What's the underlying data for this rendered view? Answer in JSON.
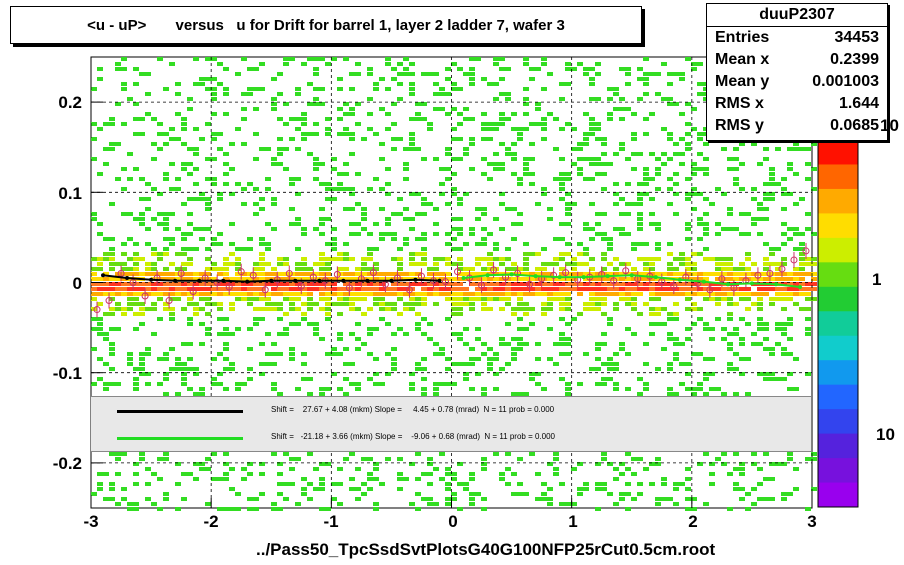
{
  "title": "<u - uP>       versus   u for Drift for barrel 1, layer 2 ladder 7, wafer 3",
  "stats": {
    "name": "duuP2307",
    "rows": [
      {
        "label": "Entries",
        "value": "34453"
      },
      {
        "label": "Mean x",
        "value": "0.2399"
      },
      {
        "label": "Mean y",
        "value": "0.001003"
      },
      {
        "label": "RMS x",
        "value": "1.644"
      },
      {
        "label": "RMS y",
        "value": "0.0685"
      }
    ]
  },
  "fit": {
    "black": {
      "text": "Shift =    27.67 + 4.08 (mkm) Slope =     4.45 + 0.78 (mrad)  N = 11 prob = 0.000",
      "color": "#000000"
    },
    "green": {
      "text": "Shift =   -21.18 + 3.66 (mkm) Slope =    -9.06 + 0.68 (mrad)  N = 11 prob = 0.000",
      "color": "#22dd22"
    }
  },
  "xlabel": "../Pass50_TpcSsdSvtPlotsG40G100NFP25rCut0.5cm.root",
  "x_ticks": [
    "-3",
    "-2",
    "-1",
    "0",
    "1",
    "2",
    "3"
  ],
  "y_ticks": [
    "0.2",
    "0.1",
    "0",
    "-0.1",
    "-0.2"
  ],
  "z_ticks": [
    "10",
    "1",
    "10"
  ],
  "chart_data": {
    "type": "heatmap",
    "title": "<u - uP>       versus   u for Drift for barrel 1, layer 2 ladder 7, wafer 3",
    "xlabel": "../Pass50_TpcSsdSvtPlotsG40G100NFP25rCut0.5cm.root",
    "ylabel": "",
    "xlim": [
      -3,
      3
    ],
    "ylim": [
      -0.25,
      0.25
    ],
    "x_ticks": [
      -3,
      -2,
      -1,
      0,
      1,
      2,
      3
    ],
    "y_ticks": [
      -0.2,
      -0.1,
      0,
      0.1,
      0.2
    ],
    "z_scale": "log",
    "grid": true,
    "series": [
      {
        "name": "black",
        "x": [
          -2.9,
          -2.7,
          -2.5,
          -2.3,
          -2.1,
          -1.9,
          -1.7,
          -1.5,
          -1.3,
          -1.1,
          -0.9,
          -0.7,
          -0.5,
          -0.3,
          -0.1
        ],
        "y": [
          0.008,
          0.005,
          0.003,
          0.002,
          0.002,
          0.002,
          0.001,
          0.002,
          0.002,
          0.002,
          0.002,
          0.002,
          0.002,
          0.003,
          0.002
        ]
      },
      {
        "name": "green",
        "x": [
          0.1,
          0.3,
          0.5,
          0.7,
          0.9,
          1.1,
          1.3,
          1.5,
          1.7,
          1.9,
          2.1,
          2.3,
          2.5,
          2.7,
          2.9
        ],
        "y": [
          0.005,
          0.008,
          0.009,
          0.007,
          0.006,
          0.006,
          0.007,
          0.008,
          0.006,
          0.003,
          0.001,
          -0.002,
          -0.001,
          -0.002,
          -0.005
        ]
      },
      {
        "name": "points",
        "x": [
          -2.95,
          -2.85,
          -2.75,
          -2.65,
          -2.55,
          -2.45,
          -2.35,
          -2.25,
          -2.15,
          -2.05,
          -1.95,
          -1.85,
          -1.75,
          -1.65,
          -1.55,
          -1.45,
          -1.35,
          -1.25,
          -1.15,
          -1.05,
          -0.95,
          -0.85,
          -0.75,
          -0.65,
          -0.55,
          -0.45,
          -0.35,
          -0.25,
          -0.15,
          -0.05,
          0.05,
          0.15,
          0.25,
          0.35,
          0.45,
          0.55,
          0.65,
          0.75,
          0.85,
          0.95,
          1.05,
          1.15,
          1.25,
          1.35,
          1.45,
          1.55,
          1.65,
          1.75,
          1.85,
          1.95,
          2.05,
          2.15,
          2.25,
          2.35,
          2.45,
          2.55,
          2.65,
          2.75,
          2.85,
          2.95
        ],
        "y": [
          -0.03,
          -0.02,
          0.01,
          0.0,
          -0.015,
          0.005,
          -0.02,
          0.01,
          -0.01,
          0.005,
          0.0,
          -0.005,
          0.012,
          0.008,
          -0.008,
          0.003,
          0.01,
          -0.004,
          0.006,
          0.002,
          0.009,
          -0.006,
          0.004,
          0.011,
          -0.002,
          0.005,
          -0.008,
          0.007,
          0.002,
          0.001,
          0.012,
          0.005,
          -0.003,
          0.014,
          0.006,
          0.01,
          -0.002,
          0.004,
          0.008,
          0.011,
          0.003,
          0.006,
          0.009,
          0.002,
          0.013,
          0.004,
          0.007,
          0.001,
          -0.004,
          0.006,
          -0.001,
          -0.008,
          0.004,
          -0.006,
          0.002,
          0.008,
          0.01,
          0.015,
          0.025,
          0.035
        ]
      }
    ]
  }
}
